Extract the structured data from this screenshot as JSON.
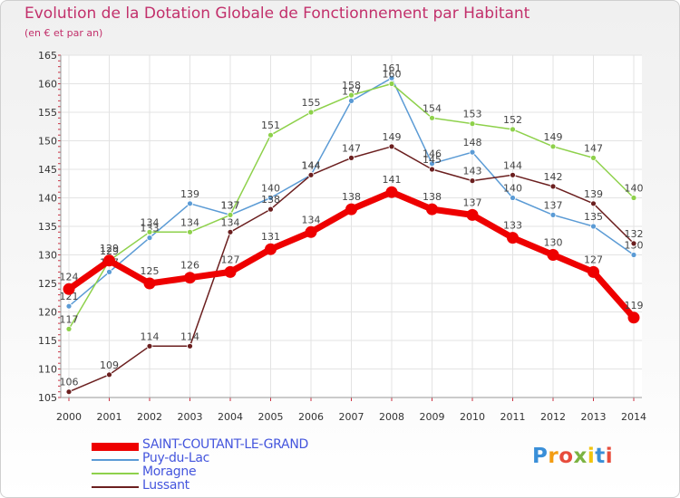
{
  "title": "Evolution de la Dotation Globale de Fonctionnement par Habitant",
  "subtitle": "(en € et par an)",
  "logo": {
    "text": "Proxiti",
    "colors": [
      "#3a8fd8",
      "#f39c12",
      "#e74c3c",
      "#7cb342",
      "#f1c40f",
      "#3a8fd8",
      "#e74c3c"
    ]
  },
  "chart_data": {
    "type": "line",
    "title": "Evolution de la Dotation Globale de Fonctionnement par Habitant",
    "subtitle": "(en € et par an)",
    "xlabel": "",
    "ylabel": "",
    "x": [
      "2000",
      "2001",
      "2002",
      "2003",
      "2004",
      "2005",
      "2006",
      "2007",
      "2008",
      "2009",
      "2010",
      "2011",
      "2012",
      "2013",
      "2014"
    ],
    "ylim": [
      105,
      165
    ],
    "yticks": [
      105,
      110,
      115,
      120,
      125,
      130,
      135,
      140,
      145,
      150,
      155,
      160,
      165
    ],
    "grid": true,
    "legend_position": "bottom-left",
    "series": [
      {
        "name": "SAINT-COUTANT-LE-GRAND",
        "color": "#ee0000",
        "values": [
          124,
          129,
          125,
          126,
          127,
          131,
          134,
          138,
          141,
          138,
          137,
          133,
          130,
          127,
          119
        ]
      },
      {
        "name": "Puy-du-Lac",
        "color": "#5b9bd5",
        "values": [
          121,
          127,
          133,
          139,
          137,
          140,
          144,
          157,
          161,
          146,
          148,
          140,
          137,
          135,
          130
        ]
      },
      {
        "name": "Moragne",
        "color": "#8ed14b",
        "values": [
          117,
          129,
          134,
          134,
          137,
          151,
          155,
          158,
          160,
          154,
          153,
          152,
          149,
          147,
          140
        ]
      },
      {
        "name": "Lussant",
        "color": "#6b1f1f",
        "values": [
          106,
          109,
          114,
          114,
          134,
          138,
          144,
          147,
          149,
          145,
          143,
          144,
          142,
          139,
          132
        ]
      }
    ]
  }
}
